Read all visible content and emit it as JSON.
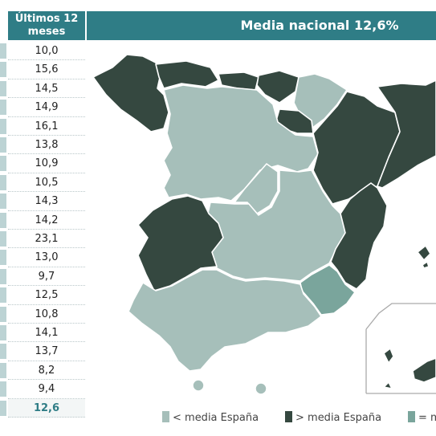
{
  "table": {
    "header": "Últimos 12 meses",
    "values": [
      "10,0",
      "15,6",
      "14,5",
      "14,9",
      "16,1",
      "13,8",
      "10,9",
      "10,5",
      "14,3",
      "14,2",
      "23,1",
      "13,0",
      "9,7",
      "12,5",
      "10,8",
      "14,1",
      "13,7",
      "8,2",
      "9,4"
    ],
    "total": "12,6"
  },
  "map": {
    "title": "Media nacional 12,6%",
    "colors": {
      "below": "#a6bfba",
      "above": "#354840",
      "equal": "#7aa59c",
      "border": "#ffffff",
      "frame": "#aaaaaa"
    }
  },
  "legend": [
    {
      "label": "< media España",
      "color": "#a6bfba"
    },
    {
      "label": "> media España",
      "color": "#354840"
    },
    {
      "label": "= m",
      "color": "#7aa59c"
    }
  ]
}
